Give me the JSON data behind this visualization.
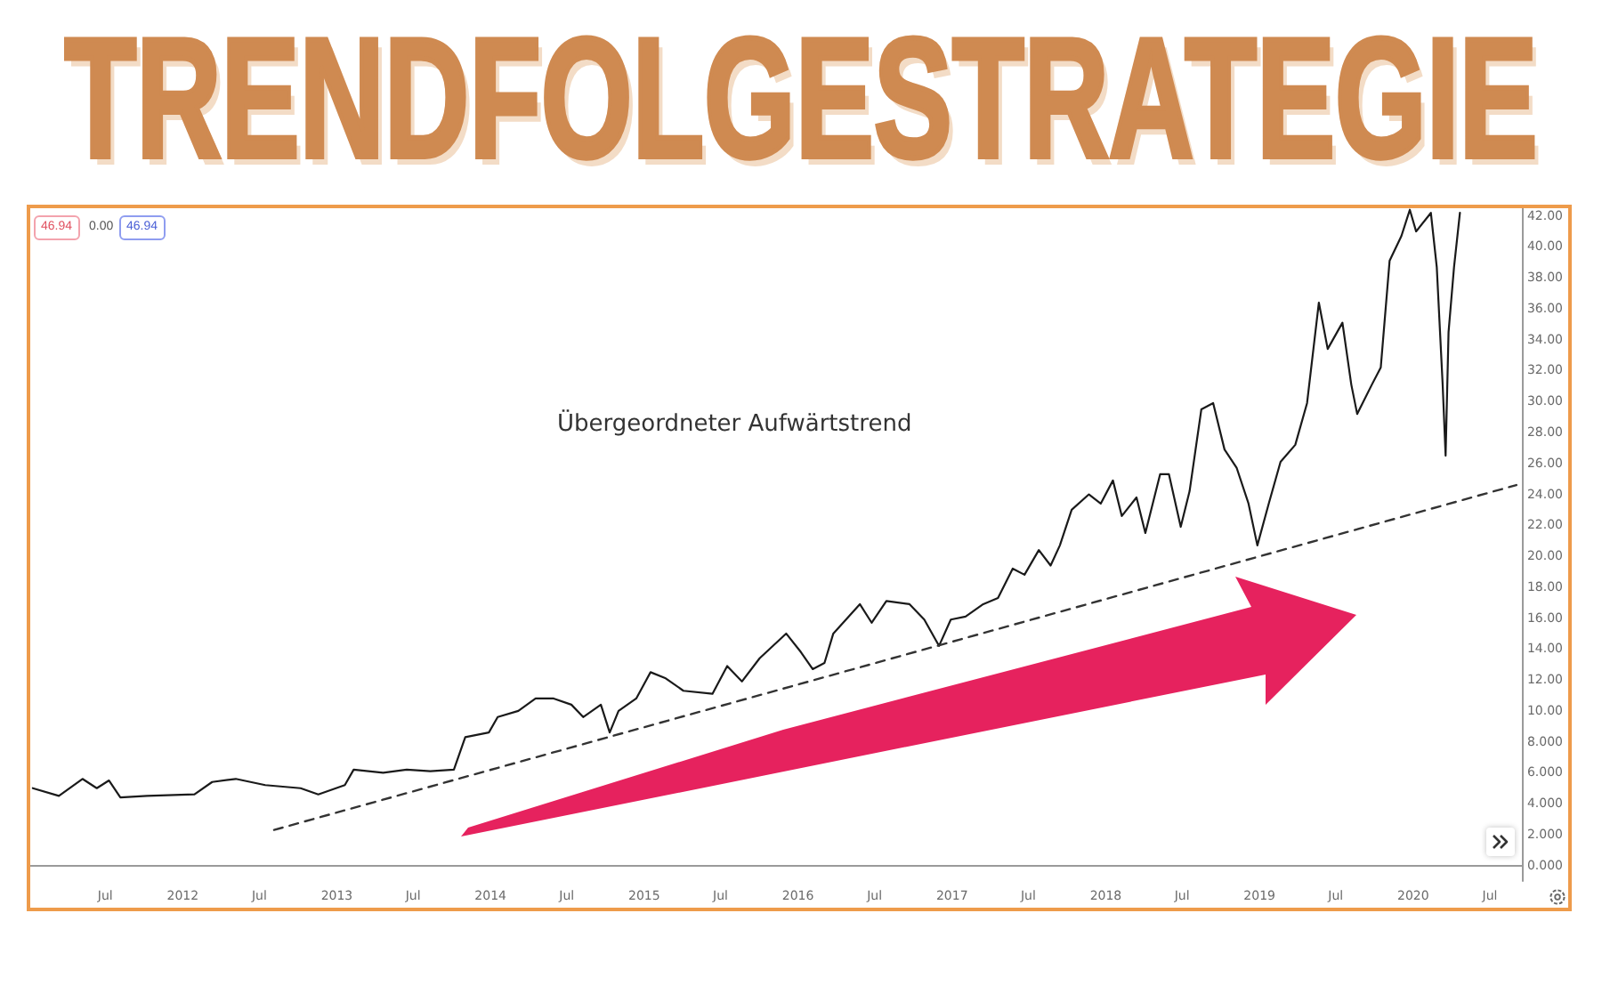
{
  "chart_data": {
    "type": "line",
    "title": "TRENDFOLGESTRATEGIE",
    "annotations": [
      "46.94",
      "0.00",
      "46.94",
      "Übergeordneter Aufwärtstrend"
    ],
    "marker": "none",
    "series": [
      {
        "color": "#1a1a1a",
        "line_style": "solid",
        "x": [
          "2011-01-10",
          "2011-03-13",
          "2011-05-08",
          "2011-06-11",
          "2011-07-10",
          "2011-08-06",
          "2011-10-08",
          "2012-01-29",
          "2012-03-11",
          "2012-05-06",
          "2012-07-15",
          "2012-10-07",
          "2012-11-18",
          "2013-01-20",
          "2013-02-10",
          "2013-04-21",
          "2013-06-16",
          "2013-08-11",
          "2013-10-06",
          "2013-11-02",
          "2013-12-28",
          "2014-01-18",
          "2014-03-08",
          "2014-04-18",
          "2014-05-31",
          "2014-07-12",
          "2014-08-09",
          "2014-09-20",
          "2014-10-11",
          "2014-11-01",
          "2014-12-13",
          "2015-01-16",
          "2015-02-21",
          "2015-04-04",
          "2015-06-12",
          "2015-07-17",
          "2015-08-21",
          "2015-10-02",
          "2015-12-04",
          "2016-01-08",
          "2016-02-05",
          "2016-03-04",
          "2016-03-25",
          "2016-05-27",
          "2016-06-24",
          "2016-07-29",
          "2016-09-22",
          "2016-10-27",
          "2016-12-01",
          "2016-12-29",
          "2017-02-02",
          "2017-03-16",
          "2017-04-20",
          "2017-05-25",
          "2017-06-22",
          "2017-07-26",
          "2017-08-23",
          "2017-09-14",
          "2017-10-12",
          "2017-11-22",
          "2017-12-20",
          "2018-01-18",
          "2018-02-08",
          "2018-03-15",
          "2018-04-05",
          "2018-05-10",
          "2018-05-31",
          "2018-06-28",
          "2018-07-19",
          "2018-08-16",
          "2018-09-13",
          "2018-10-10",
          "2018-11-08",
          "2018-12-06",
          "2018-12-27",
          "2019-01-23",
          "2019-02-20",
          "2019-03-27",
          "2019-04-24",
          "2019-05-22",
          "2019-06-12",
          "2019-07-17",
          "2019-08-07",
          "2019-08-21",
          "2019-09-25",
          "2019-10-16",
          "2019-11-06",
          "2019-12-04",
          "2019-12-24",
          "2020-01-08",
          "2020-02-12",
          "2020-02-26",
          "2020-03-11",
          "2020-03-18",
          "2020-03-25",
          "2020-04-07",
          "2020-04-21"
        ],
        "values": [
          5.0,
          4.5,
          5.6,
          5.0,
          5.5,
          4.4,
          4.5,
          4.6,
          5.4,
          5.6,
          5.2,
          5.0,
          4.6,
          5.2,
          6.2,
          6.0,
          6.2,
          6.1,
          6.2,
          8.3,
          8.6,
          9.6,
          10.0,
          10.8,
          10.8,
          10.4,
          9.6,
          10.4,
          8.6,
          10.0,
          10.8,
          12.5,
          12.1,
          11.3,
          11.1,
          12.9,
          11.9,
          13.4,
          15.0,
          13.8,
          12.7,
          13.1,
          15.0,
          16.9,
          15.7,
          17.1,
          16.9,
          15.9,
          14.2,
          15.9,
          16.1,
          16.9,
          17.3,
          19.2,
          18.8,
          20.4,
          19.4,
          20.7,
          23.0,
          24.0,
          23.4,
          24.9,
          22.6,
          23.8,
          21.5,
          25.3,
          25.3,
          21.9,
          24.2,
          29.5,
          29.9,
          26.9,
          25.7,
          23.4,
          20.7,
          23.4,
          26.1,
          27.2,
          29.9,
          36.4,
          33.4,
          35.1,
          31.1,
          29.2,
          31.1,
          32.2,
          39.1,
          40.7,
          42.4,
          41.0,
          42.2,
          38.7,
          31.1,
          26.5,
          34.5,
          38.7,
          42.2
        ]
      },
      {
        "type": "line",
        "color": "#333333",
        "line_style": "dashed",
        "x": [
          "2012-08-05",
          "2020-09-02"
        ],
        "values": [
          2.3,
          24.6
        ]
      }
    ],
    "xlim": [
      "2011-01-04",
      "2020-09-15"
    ],
    "xticks": [
      {
        "value": "2011-07",
        "label": "Jul"
      },
      "2012",
      {
        "value": "2012-07",
        "label": "Jul"
      },
      "2013",
      {
        "value": "2013-07",
        "label": "Jul"
      },
      "2014",
      {
        "value": "2014-07",
        "label": "Jul"
      },
      "2015",
      {
        "value": "2015-07",
        "label": "Jul"
      },
      "2016",
      {
        "value": "2016-07",
        "label": "Jul"
      },
      "2017",
      {
        "value": "2017-07",
        "label": "Jul"
      },
      "2018",
      {
        "value": "2018-07",
        "label": "Jul"
      },
      "2019",
      {
        "value": "2019-07",
        "label": "Jul"
      },
      "2020",
      {
        "value": "2020-07",
        "label": "Jul"
      }
    ],
    "ylim": [
      -1,
      42.5
    ],
    "yticks": [
      {
        "value": 0,
        "label": "0.000"
      },
      {
        "value": 2,
        "label": "2.000"
      },
      {
        "value": 4,
        "label": "4.000"
      },
      {
        "value": 6,
        "label": "6.000"
      },
      {
        "value": 8,
        "label": "8.000"
      },
      {
        "value": 10,
        "label": "10.00"
      },
      {
        "value": 12,
        "label": "12.00"
      },
      {
        "value": 14,
        "label": "14.00"
      },
      {
        "value": 16,
        "label": "16.00"
      },
      {
        "value": 18,
        "label": "18.00"
      },
      {
        "value": 20,
        "label": "20.00"
      },
      {
        "value": 22,
        "label": "22.00"
      },
      {
        "value": 24,
        "label": "24.00"
      },
      {
        "value": 26,
        "label": "26.00"
      },
      {
        "value": 28,
        "label": "28.00"
      },
      {
        "value": 30,
        "label": "30.00"
      },
      {
        "value": 32,
        "label": "32.00"
      },
      {
        "value": 34,
        "label": "34.00"
      },
      {
        "value": 36,
        "label": "36.00"
      },
      {
        "value": 38,
        "label": "38.00"
      },
      {
        "value": 40,
        "label": "40.00"
      },
      {
        "value": 42,
        "label": "42.00"
      }
    ]
  }
}
